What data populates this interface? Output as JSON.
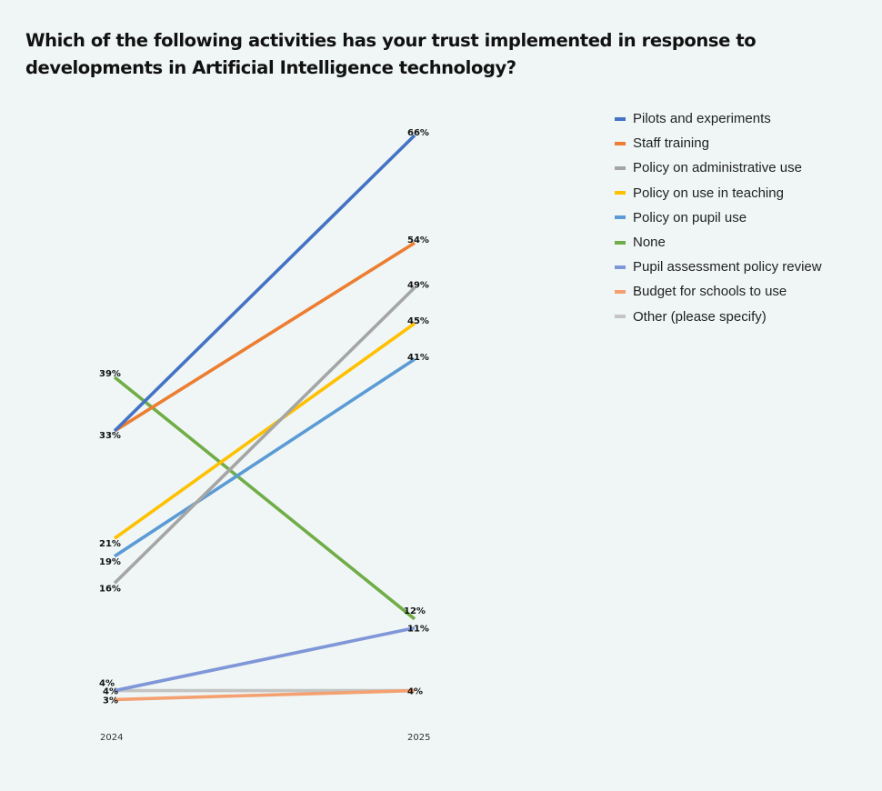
{
  "chart_data": {
    "type": "line",
    "title": "Which of the following activities has your trust implemented in response to developments in Artificial Intelligence technology?",
    "x": [
      "2024",
      "2025"
    ],
    "xlabel": "",
    "ylabel": "",
    "ylim": [
      0,
      70
    ],
    "grid": false,
    "legend_position": "right",
    "series": [
      {
        "name": "Pilots and experiments",
        "color": "#4472c4",
        "values": [
          33,
          66
        ],
        "labels": [
          "",
          "66%"
        ]
      },
      {
        "name": "Staff training",
        "color": "#ed7d31",
        "values": [
          33,
          54
        ],
        "labels": [
          "33%",
          "54%"
        ]
      },
      {
        "name": "Policy on administrative use",
        "color": "#a5a5a5",
        "values": [
          16,
          49
        ],
        "labels": [
          "16%",
          "49%"
        ]
      },
      {
        "name": "Policy on use in teaching",
        "color": "#ffc000",
        "values": [
          21,
          45
        ],
        "labels": [
          "21%",
          "45%"
        ]
      },
      {
        "name": "Policy on pupil use",
        "color": "#5b9bd5",
        "values": [
          19,
          41
        ],
        "labels": [
          "19%",
          "41%"
        ]
      },
      {
        "name": "None",
        "color": "#70ad47",
        "values": [
          39,
          12
        ],
        "labels": [
          "39%",
          "12%"
        ]
      },
      {
        "name": "Pupil assessment policy review",
        "color": "#7f96d8",
        "values": [
          4,
          11
        ],
        "labels": [
          "4%",
          "11%"
        ]
      },
      {
        "name": "Budget for schools to use",
        "color": "#f4a070",
        "values": [
          3,
          4
        ],
        "labels": [
          "3%",
          ""
        ]
      },
      {
        "name": "Other (please specify)",
        "color": "#c4c4c4",
        "values": [
          4,
          4
        ],
        "labels": [
          "4%",
          "4%"
        ]
      }
    ]
  }
}
